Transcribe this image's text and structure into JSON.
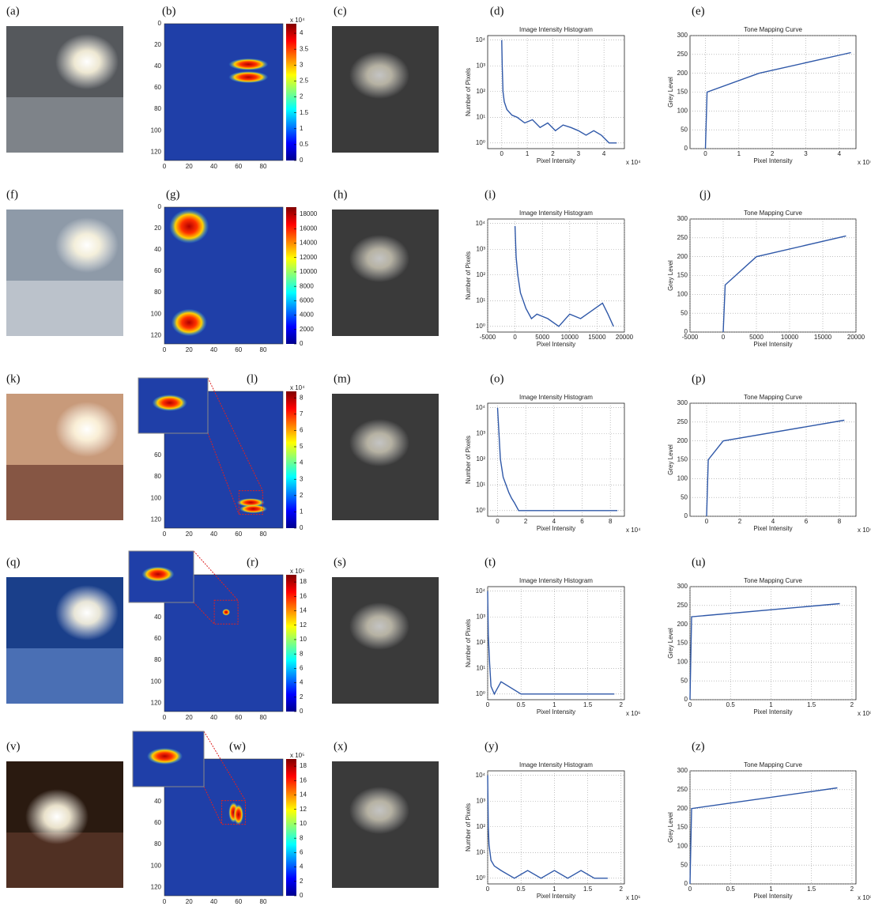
{
  "rows": [
    {
      "labels": [
        "(a)",
        "(b)",
        "(c)",
        "(d)",
        "(e)"
      ],
      "heatmap": {
        "xlim": [
          0,
          96
        ],
        "ylim": [
          0,
          128
        ],
        "xticks": [
          0,
          20,
          40,
          60,
          80
        ],
        "yticks": [
          0,
          20,
          40,
          60,
          80,
          100,
          120
        ],
        "colorbar": {
          "exponent": "x 10⁴",
          "clim": [
            0,
            4.3
          ],
          "ticks": [
            0,
            0.5,
            1,
            1.5,
            2,
            2.5,
            3,
            3.5,
            4
          ]
        }
      },
      "histogram": {
        "type": "line",
        "title": "Image Intensity Histogram",
        "xlabel": "Pixel Intensity",
        "ylabel": "Number of Pixels",
        "x_exponent": "x 10⁴",
        "log_y": true,
        "grid": true,
        "color": "#2f58a8",
        "xlim": [
          -0.55,
          4.8
        ],
        "ylim": [
          0.6,
          15000
        ],
        "xticks": [
          0,
          1,
          2,
          3,
          4
        ],
        "yticks": [
          {
            "value": 1,
            "label": "10⁰"
          },
          {
            "value": 10,
            "label": "10¹"
          },
          {
            "value": 100,
            "label": "10²"
          },
          {
            "value": 1000,
            "label": "10³"
          },
          {
            "value": 10000,
            "label": "10⁴"
          }
        ],
        "x": [
          0,
          0.02,
          0.05,
          0.1,
          0.2,
          0.4,
          0.6,
          0.9,
          1.2,
          1.5,
          1.8,
          2.1,
          2.4,
          2.7,
          3,
          3.3,
          3.6,
          3.9,
          4.2,
          4.5
        ],
        "values": [
          10000,
          1000,
          100,
          40,
          20,
          12,
          10,
          6,
          8,
          4,
          6,
          3,
          5,
          4,
          3,
          2,
          3,
          2,
          1,
          1
        ]
      },
      "tone": {
        "type": "line",
        "title": "Tone Mapping Curve",
        "xlabel": "Pixel Intensity",
        "ylabel": "Grey Level",
        "x_exponent": "x 10⁴",
        "grid": true,
        "color": "#2f58a8",
        "xlim": [
          -0.46,
          4.5
        ],
        "ylim": [
          0,
          300
        ],
        "xticks": [
          0,
          1,
          2,
          3,
          4
        ],
        "yticks": [
          0,
          50,
          100,
          150,
          200,
          250,
          300
        ],
        "x": [
          0,
          0.05,
          1.6,
          4.35
        ],
        "values": [
          0,
          150,
          200,
          255
        ]
      }
    },
    {
      "labels": [
        "(f)",
        "(g)",
        "(h)",
        "(i)",
        "(j)"
      ],
      "heatmap": {
        "xlim": [
          0,
          96
        ],
        "ylim": [
          0,
          128
        ],
        "xticks": [
          0,
          20,
          40,
          60,
          80
        ],
        "yticks": [
          0,
          20,
          40,
          60,
          80,
          100,
          120
        ],
        "colorbar": {
          "clim": [
            0,
            19000
          ],
          "ticks": [
            0,
            2000,
            4000,
            6000,
            8000,
            10000,
            12000,
            14000,
            16000,
            18000
          ]
        }
      },
      "histogram": {
        "type": "line",
        "title": "Image Intensity Histogram",
        "xlabel": "Pixel Intensity",
        "ylabel": "Number of Pixels",
        "log_y": true,
        "grid": true,
        "color": "#2f58a8",
        "xlim": [
          -5000,
          20000
        ],
        "ylim": [
          0.6,
          15000
        ],
        "xticks": [
          -5000,
          0,
          5000,
          10000,
          15000,
          20000
        ],
        "yticks": [
          {
            "value": 1,
            "label": "10⁰"
          },
          {
            "value": 10,
            "label": "10¹"
          },
          {
            "value": 100,
            "label": "10²"
          },
          {
            "value": 1000,
            "label": "10³"
          },
          {
            "value": 10000,
            "label": "10⁴"
          }
        ],
        "x": [
          0,
          200,
          500,
          1000,
          1500,
          2000,
          3000,
          4000,
          6000,
          8000,
          10000,
          12000,
          14000,
          16000,
          17000,
          18000
        ],
        "values": [
          8000,
          500,
          100,
          20,
          10,
          5,
          2,
          3,
          2,
          1,
          3,
          2,
          4,
          8,
          3,
          1
        ]
      },
      "tone": {
        "type": "line",
        "title": "Tone Mapping Curve",
        "xlabel": "Pixel Intensity",
        "ylabel": "Grey Level",
        "grid": true,
        "color": "#2f58a8",
        "xlim": [
          -5000,
          20000
        ],
        "ylim": [
          0,
          300
        ],
        "xticks": [
          -5000,
          0,
          5000,
          10000,
          15000,
          20000
        ],
        "yticks": [
          0,
          50,
          100,
          150,
          200,
          250,
          300
        ],
        "x": [
          0,
          300,
          5000,
          18500
        ],
        "values": [
          0,
          125,
          200,
          255
        ]
      }
    },
    {
      "labels": [
        "(k)",
        "(l)",
        "(m)",
        "(o)",
        "(p)"
      ],
      "heatmap": {
        "xlim": [
          0,
          96
        ],
        "ylim": [
          0,
          128
        ],
        "xticks": [
          0,
          20,
          40,
          60,
          80
        ],
        "yticks": [
          60,
          80,
          100,
          120
        ],
        "colorbar": {
          "exponent": "x 10⁴",
          "clim": [
            0,
            8.4
          ],
          "ticks": [
            0,
            1,
            2,
            3,
            4,
            5,
            6,
            7,
            8
          ]
        }
      },
      "histogram": {
        "type": "line",
        "title": "Image Intensity Histogram",
        "xlabel": "Pixel Intensity",
        "ylabel": "Number of Pixels",
        "x_exponent": "x 10⁴",
        "log_y": true,
        "grid": true,
        "color": "#2f58a8",
        "xlim": [
          -0.7,
          9
        ],
        "ylim": [
          0.6,
          15000
        ],
        "xticks": [
          0,
          2,
          4,
          6,
          8
        ],
        "yticks": [
          {
            "value": 1,
            "label": "10⁰"
          },
          {
            "value": 10,
            "label": "10¹"
          },
          {
            "value": 100,
            "label": "10²"
          },
          {
            "value": 1000,
            "label": "10³"
          },
          {
            "value": 10000,
            "label": "10⁴"
          }
        ],
        "x": [
          0,
          0.1,
          0.2,
          0.4,
          0.6,
          0.8,
          1,
          1.2,
          1.5,
          2,
          3,
          4,
          5,
          6,
          7,
          8,
          8.5
        ],
        "values": [
          10000,
          1000,
          100,
          20,
          10,
          5,
          3,
          2,
          1,
          1,
          1,
          1,
          1,
          1,
          1,
          1,
          1
        ]
      },
      "tone": {
        "type": "line",
        "title": "Tone Mapping Curve",
        "xlabel": "Pixel Intensity",
        "ylabel": "Grey Level",
        "x_exponent": "x 10⁴",
        "grid": true,
        "color": "#2f58a8",
        "xlim": [
          -1,
          9
        ],
        "ylim": [
          0,
          300
        ],
        "xticks": [
          0,
          2,
          4,
          6,
          8
        ],
        "yticks": [
          0,
          50,
          100,
          150,
          200,
          250,
          300
        ],
        "x": [
          0,
          0.1,
          1,
          8.3
        ],
        "values": [
          0,
          150,
          200,
          255
        ]
      }
    },
    {
      "labels": [
        "(q)",
        "(r)",
        "(s)",
        "(t)",
        "(u)"
      ],
      "heatmap": {
        "xlim": [
          0,
          96
        ],
        "ylim": [
          0,
          128
        ],
        "xticks": [
          0,
          20,
          40,
          60,
          80
        ],
        "yticks": [
          40,
          60,
          80,
          100,
          120
        ],
        "colorbar": {
          "exponent": "x 10⁵",
          "clim": [
            0,
            19
          ],
          "ticks": [
            0,
            2,
            4,
            6,
            8,
            10,
            12,
            14,
            16,
            18
          ]
        }
      },
      "histogram": {
        "type": "line",
        "title": "Image Intensity Histogram",
        "xlabel": "Pixel Intensity",
        "ylabel": "Number of Pixels",
        "x_exponent": "x 10⁶",
        "log_y": true,
        "grid": true,
        "color": "#2f58a8",
        "xlim": [
          0,
          2.05
        ],
        "ylim": [
          0.6,
          15000
        ],
        "xticks": [
          0,
          0.5,
          1,
          1.5,
          2
        ],
        "yticks": [
          {
            "value": 1,
            "label": "10⁰"
          },
          {
            "value": 10,
            "label": "10¹"
          },
          {
            "value": 100,
            "label": "10²"
          },
          {
            "value": 1000,
            "label": "10³"
          },
          {
            "value": 10000,
            "label": "10⁴"
          }
        ],
        "x": [
          0,
          0.01,
          0.02,
          0.03,
          0.05,
          0.1,
          0.2,
          0.5,
          1,
          1.2,
          1.5,
          1.9
        ],
        "values": [
          10000,
          200,
          50,
          15,
          2,
          1,
          3,
          1,
          1,
          1,
          1,
          1
        ]
      },
      "tone": {
        "type": "line",
        "title": "Tone Mapping Curve",
        "xlabel": "Pixel Intensity",
        "ylabel": "Grey Level",
        "x_exponent": "x 10⁶",
        "grid": true,
        "color": "#2f58a8",
        "xlim": [
          0,
          2.05
        ],
        "ylim": [
          0,
          300
        ],
        "xticks": [
          0,
          0.5,
          1,
          1.5,
          2
        ],
        "yticks": [
          0,
          50,
          100,
          150,
          200,
          250,
          300
        ],
        "x": [
          0,
          0.02,
          1.85
        ],
        "values": [
          0,
          220,
          255
        ]
      }
    },
    {
      "labels": [
        "(v)",
        "(w)",
        "(x)",
        "(y)",
        "(z)"
      ],
      "heatmap": {
        "xlim": [
          0,
          96
        ],
        "ylim": [
          0,
          128
        ],
        "xticks": [
          0,
          20,
          40,
          60,
          80
        ],
        "yticks": [
          20,
          40,
          60,
          80,
          100,
          120
        ],
        "colorbar": {
          "exponent": "x 10⁵",
          "clim": [
            0,
            19
          ],
          "ticks": [
            0,
            2,
            4,
            6,
            8,
            10,
            12,
            14,
            16,
            18
          ]
        }
      },
      "histogram": {
        "type": "line",
        "title": "Image Intensity Histogram",
        "xlabel": "Pixel Intensity",
        "ylabel": "Number of Pixels",
        "x_exponent": "x 10⁶",
        "log_y": true,
        "grid": true,
        "color": "#2f58a8",
        "xlim": [
          0,
          2.05
        ],
        "ylim": [
          0.6,
          15000
        ],
        "xticks": [
          0,
          0.5,
          1,
          1.5,
          2
        ],
        "yticks": [
          {
            "value": 1,
            "label": "10⁰"
          },
          {
            "value": 10,
            "label": "10¹"
          },
          {
            "value": 100,
            "label": "10²"
          },
          {
            "value": 1000,
            "label": "10³"
          },
          {
            "value": 10000,
            "label": "10⁴"
          }
        ],
        "x": [
          0,
          0.01,
          0.02,
          0.05,
          0.1,
          0.2,
          0.4,
          0.6,
          0.8,
          1,
          1.2,
          1.4,
          1.6,
          1.8
        ],
        "values": [
          10000,
          100,
          20,
          5,
          3,
          2,
          1,
          2,
          1,
          2,
          1,
          2,
          1,
          1
        ]
      },
      "tone": {
        "type": "line",
        "title": "Tone Mapping Curve",
        "xlabel": "Pixel Intensity",
        "ylabel": "Grey Level",
        "x_exponent": "x 10⁶",
        "grid": true,
        "color": "#2f58a8",
        "xlim": [
          0,
          2.05
        ],
        "ylim": [
          0,
          300
        ],
        "xticks": [
          0,
          0.5,
          1,
          1.5,
          2
        ],
        "yticks": [
          0,
          50,
          100,
          150,
          200,
          250,
          300
        ],
        "x": [
          0,
          0.02,
          1.82
        ],
        "values": [
          0,
          200,
          255
        ]
      }
    }
  ]
}
